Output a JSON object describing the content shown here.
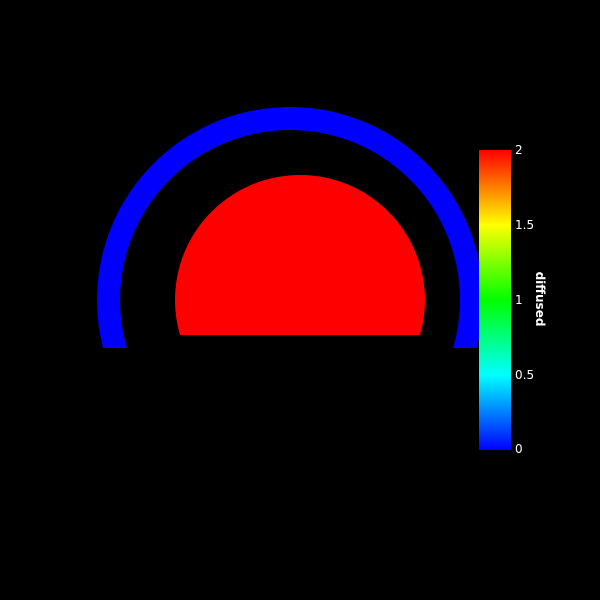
{
  "render": {
    "background_color": "#000000",
    "outer_ring_color": "#0000ff",
    "inner_disc_color": "#ff0000"
  },
  "colorbar": {
    "title": "diffused",
    "range": [
      0,
      2
    ],
    "colormap": [
      "#0000ff",
      "#00ffff",
      "#00ff00",
      "#ffff00",
      "#ff0000"
    ],
    "ticks": [
      "2",
      "1.5",
      "1",
      "0.5",
      "0"
    ]
  }
}
